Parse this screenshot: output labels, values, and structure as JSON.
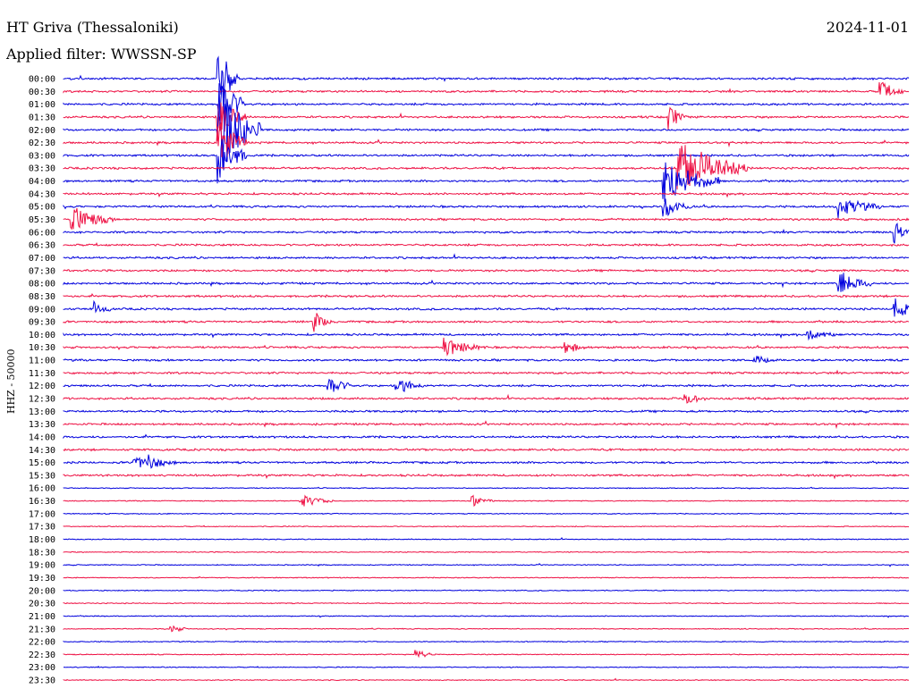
{
  "header": {
    "station": "HT Griva (Thessaloniki)",
    "date": "2024-11-01",
    "filter_label": "Applied filter: WWSSN-SP"
  },
  "colors": {
    "blue": "#0000dd",
    "red": "#ee1144"
  },
  "chart_data": {
    "type": "line",
    "title": "HT Griva (Thessaloniki)",
    "ylabel": "HHZ - 50000",
    "rows": [
      "00:00",
      "00:30",
      "01:00",
      "01:30",
      "02:00",
      "02:30",
      "03:00",
      "03:30",
      "04:00",
      "04:30",
      "05:00",
      "05:30",
      "06:00",
      "06:30",
      "07:00",
      "07:30",
      "08:00",
      "08:30",
      "09:00",
      "09:30",
      "10:00",
      "10:30",
      "11:00",
      "11:30",
      "12:00",
      "12:30",
      "13:00",
      "13:30",
      "14:00",
      "14:30",
      "15:00",
      "15:30",
      "16:00",
      "16:30",
      "17:00",
      "17:30",
      "18:00",
      "18:30",
      "19:00",
      "19:30",
      "20:00",
      "20:30",
      "21:00",
      "21:30",
      "22:00",
      "22:30",
      "23:00",
      "23:30"
    ],
    "series_color_pattern": [
      "blue",
      "red"
    ],
    "events": [
      {
        "row": 0,
        "minute": 5.5,
        "amp": 3.0,
        "len": 0.8
      },
      {
        "row": 2,
        "minute": 5.5,
        "amp": 3.0,
        "len": 1.0
      },
      {
        "row": 3,
        "minute": 5.5,
        "amp": 2.0,
        "len": 1.0
      },
      {
        "row": 4,
        "minute": 5.5,
        "amp": 4.5,
        "len": 1.5
      },
      {
        "row": 5,
        "minute": 5.5,
        "amp": 2.5,
        "len": 1.0
      },
      {
        "row": 6,
        "minute": 5.5,
        "amp": 2.5,
        "len": 1.0
      },
      {
        "row": 1,
        "minute": 29.0,
        "amp": 0.9,
        "len": 0.8
      },
      {
        "row": 3,
        "minute": 21.5,
        "amp": 1.2,
        "len": 0.6
      },
      {
        "row": 7,
        "minute": 21.8,
        "amp": 2.8,
        "len": 2.5
      },
      {
        "row": 8,
        "minute": 21.3,
        "amp": 2.2,
        "len": 2.0
      },
      {
        "row": 10,
        "minute": 21.3,
        "amp": 1.0,
        "len": 1.0
      },
      {
        "row": 11,
        "minute": 0.3,
        "amp": 1.3,
        "len": 1.5
      },
      {
        "row": 10,
        "minute": 27.5,
        "amp": 1.0,
        "len": 1.5
      },
      {
        "row": 12,
        "minute": 29.5,
        "amp": 1.0,
        "len": 0.5
      },
      {
        "row": 16,
        "minute": 27.5,
        "amp": 1.2,
        "len": 1.2
      },
      {
        "row": 18,
        "minute": 29.5,
        "amp": 1.2,
        "len": 0.8
      },
      {
        "row": 18,
        "minute": 1.1,
        "amp": 0.6,
        "len": 0.6
      },
      {
        "row": 19,
        "minute": 8.9,
        "amp": 0.9,
        "len": 0.6
      },
      {
        "row": 21,
        "minute": 13.5,
        "amp": 0.8,
        "len": 1.5
      },
      {
        "row": 21,
        "minute": 17.8,
        "amp": 0.6,
        "len": 0.8
      },
      {
        "row": 20,
        "minute": 26.4,
        "amp": 0.6,
        "len": 1.0
      },
      {
        "row": 22,
        "minute": 24.5,
        "amp": 0.6,
        "len": 0.6
      },
      {
        "row": 24,
        "minute": 9.4,
        "amp": 0.8,
        "len": 1.0
      },
      {
        "row": 24,
        "minute": 11.8,
        "amp": 0.8,
        "len": 1.0
      },
      {
        "row": 25,
        "minute": 22.0,
        "amp": 0.6,
        "len": 0.8
      },
      {
        "row": 30,
        "minute": 2.5,
        "amp": 0.5,
        "len": 1.5
      },
      {
        "row": 30,
        "minute": 3.0,
        "amp": 0.6,
        "len": 0.6
      },
      {
        "row": 33,
        "minute": 8.4,
        "amp": 0.6,
        "len": 1.2
      },
      {
        "row": 33,
        "minute": 14.5,
        "amp": 0.5,
        "len": 0.8
      },
      {
        "row": 43,
        "minute": 3.8,
        "amp": 0.4,
        "len": 0.6
      },
      {
        "row": 45,
        "minute": 12.5,
        "amp": 0.4,
        "len": 0.8
      }
    ]
  }
}
